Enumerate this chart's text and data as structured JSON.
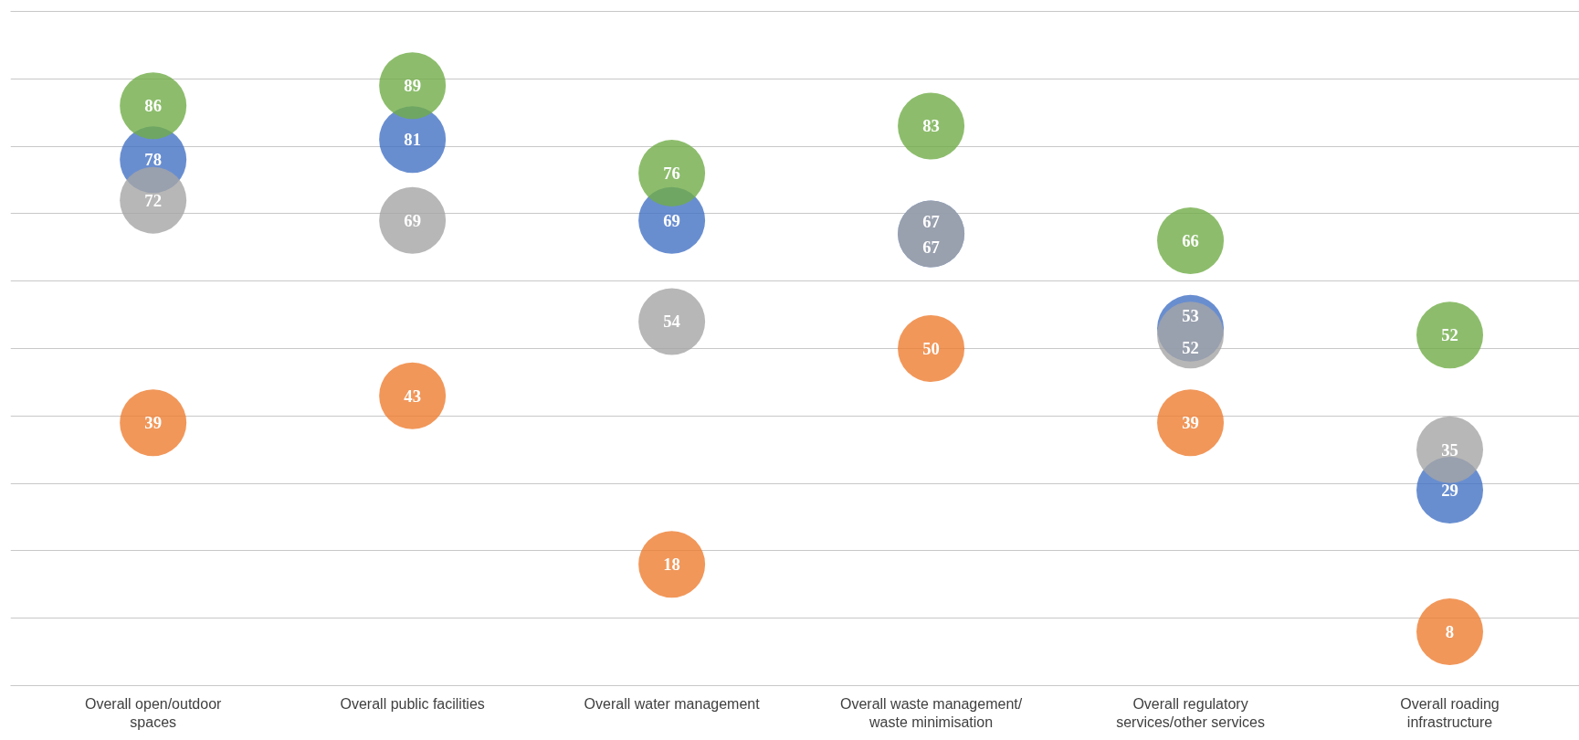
{
  "chart_data": {
    "type": "scatter",
    "categories": [
      "Overall open/outdoor spaces",
      "Overall public facilities",
      "Overall water management",
      "Overall waste management/ waste minimisation",
      "Overall regulatory services/other services",
      "Overall roading infrastructure"
    ],
    "series": [
      {
        "color": "#ed7d31",
        "values": [
          39,
          43,
          18,
          50,
          39,
          8
        ]
      },
      {
        "color": "#4472c4",
        "values": [
          78,
          81,
          69,
          67,
          53,
          29
        ]
      },
      {
        "color": "#a5a5a5",
        "values": [
          72,
          69,
          54,
          67,
          52,
          35
        ]
      },
      {
        "color": "#70ad47",
        "values": [
          86,
          89,
          76,
          83,
          66,
          52
        ]
      }
    ],
    "ylim": [
      0,
      100
    ],
    "yticks": [
      0,
      10,
      20,
      30,
      40,
      50,
      60,
      70,
      80,
      90,
      100
    ],
    "tick_labels": "x",
    "grid": "y",
    "marker": "circle",
    "data_labels": true
  }
}
